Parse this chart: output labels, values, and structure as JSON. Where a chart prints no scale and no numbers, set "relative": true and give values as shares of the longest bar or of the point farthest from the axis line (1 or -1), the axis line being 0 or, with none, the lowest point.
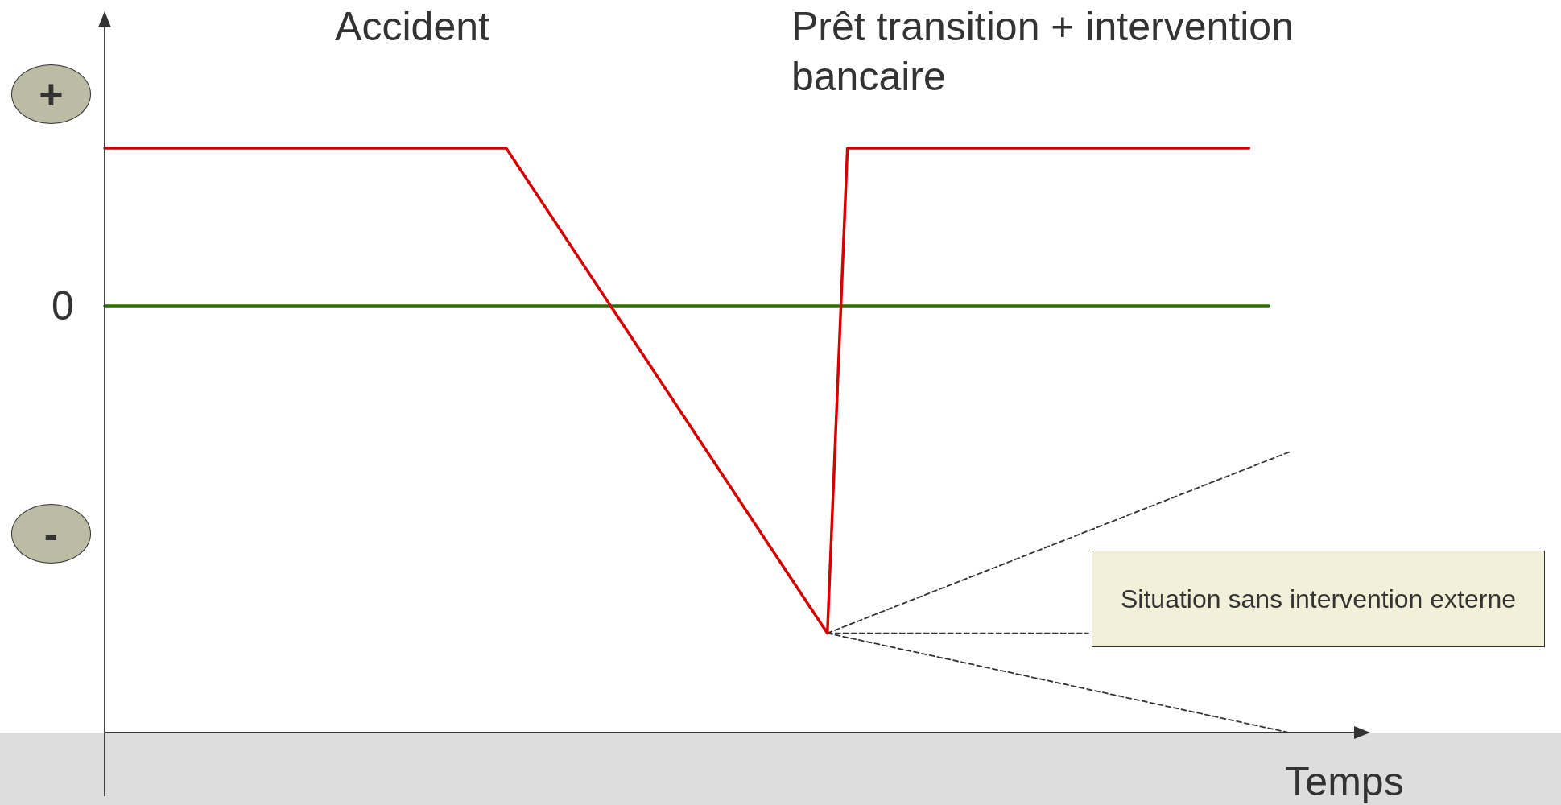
{
  "chart_data": {
    "type": "line",
    "relative": true,
    "xlabel": "Temps",
    "tick_labels": false,
    "legend": false,
    "marker": "none",
    "categories": [
      null,
      null,
      null,
      null,
      null,
      null,
      null,
      null,
      null,
      null,
      null,
      null,
      null,
      null,
      null,
      null,
      null,
      null,
      null,
      null,
      null,
      null,
      null,
      null,
      null,
      null,
      null,
      null,
      null,
      null,
      null,
      null,
      null,
      null,
      null,
      null,
      null,
      null,
      null,
      null,
      null,
      null,
      null,
      null,
      null,
      null,
      null,
      null,
      null,
      null,
      null,
      null,
      null,
      null,
      null,
      null,
      null,
      null,
      null,
      null,
      null,
      null,
      null,
      null
    ],
    "series": [
      {
        "color": "#d40000",
        "line_style": "solid",
        "values": [
          1,
          null,
          null,
          null,
          null,
          null,
          null,
          null,
          null,
          null,
          null,
          null,
          null,
          null,
          null,
          null,
          null,
          null,
          null,
          null,
          1,
          null,
          null,
          null,
          null,
          null,
          null,
          null,
          null,
          null,
          null,
          null,
          null,
          null,
          null,
          null,
          0.17,
          1,
          null,
          null,
          null,
          null,
          null,
          null,
          null,
          null,
          null,
          null,
          null,
          null,
          null,
          null,
          null,
          null,
          null,
          null,
          null,
          1,
          null,
          null,
          null,
          null,
          null,
          null
        ]
      },
      {
        "color": "#2e6e00",
        "line_style": "solid",
        "values": [
          0.73,
          null,
          null,
          null,
          null,
          null,
          null,
          null,
          null,
          null,
          null,
          null,
          null,
          null,
          null,
          null,
          null,
          null,
          null,
          null,
          null,
          null,
          null,
          null,
          null,
          null,
          null,
          null,
          null,
          null,
          null,
          null,
          null,
          null,
          null,
          null,
          null,
          null,
          null,
          null,
          null,
          null,
          null,
          null,
          null,
          null,
          null,
          null,
          null,
          null,
          null,
          null,
          null,
          null,
          null,
          null,
          null,
          null,
          0.73,
          null,
          null,
          null,
          null,
          null
        ]
      },
      {
        "color": "#333333",
        "line_style": "dashed",
        "values": [
          null,
          null,
          null,
          null,
          null,
          null,
          null,
          null,
          null,
          null,
          null,
          null,
          null,
          null,
          null,
          null,
          null,
          null,
          null,
          null,
          null,
          null,
          null,
          null,
          null,
          null,
          null,
          null,
          null,
          null,
          null,
          null,
          null,
          null,
          null,
          null,
          0.17,
          null,
          null,
          null,
          null,
          null,
          null,
          null,
          null,
          null,
          null,
          null,
          null,
          null,
          null,
          null,
          null,
          null,
          null,
          null,
          null,
          null,
          null,
          0.48,
          null,
          null,
          null,
          null
        ]
      },
      {
        "color": "#333333",
        "line_style": "dashed",
        "values": [
          null,
          null,
          null,
          null,
          null,
          null,
          null,
          null,
          null,
          null,
          null,
          null,
          null,
          null,
          null,
          null,
          null,
          null,
          null,
          null,
          null,
          null,
          null,
          null,
          null,
          null,
          null,
          null,
          null,
          null,
          null,
          null,
          null,
          null,
          null,
          null,
          0.17,
          null,
          null,
          null,
          null,
          null,
          null,
          null,
          null,
          null,
          null,
          null,
          null,
          0.17,
          null,
          null,
          null,
          null,
          null,
          null,
          null,
          null,
          null,
          null,
          null,
          null,
          null,
          null
        ]
      },
      {
        "color": "#333333",
        "line_style": "dashed",
        "values": [
          null,
          null,
          null,
          null,
          null,
          null,
          null,
          null,
          null,
          null,
          null,
          null,
          null,
          null,
          null,
          null,
          null,
          null,
          null,
          null,
          null,
          null,
          null,
          null,
          null,
          null,
          null,
          null,
          null,
          null,
          null,
          null,
          null,
          null,
          null,
          null,
          0.17,
          null,
          null,
          null,
          null,
          null,
          null,
          null,
          null,
          null,
          null,
          null,
          null,
          null,
          null,
          null,
          null,
          null,
          null,
          null,
          null,
          null,
          null,
          0,
          null,
          null,
          null,
          null
        ]
      }
    ],
    "annotations": [
      "Accident",
      "Prêt transition + intervention bancaire",
      "Situation sans intervention externe",
      "+",
      "0",
      "-"
    ]
  }
}
